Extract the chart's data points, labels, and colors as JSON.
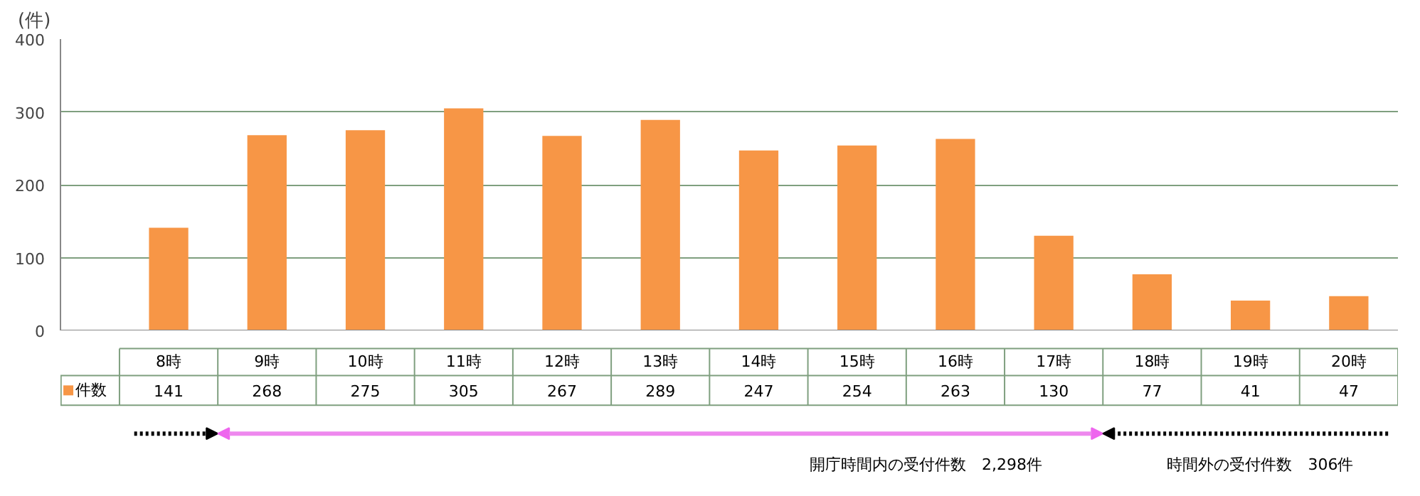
{
  "chart_data": {
    "type": "bar",
    "ylabel": "(件)",
    "categories": [
      "8時",
      "9時",
      "10時",
      "11時",
      "12時",
      "13時",
      "14時",
      "15時",
      "16時",
      "17時",
      "18時",
      "19時",
      "20時"
    ],
    "series": [
      {
        "name": "件数",
        "color": "#f79646",
        "values": [
          141,
          268,
          275,
          305,
          267,
          289,
          247,
          254,
          263,
          130,
          77,
          41,
          47
        ]
      }
    ],
    "ylim": [
      0,
      400
    ],
    "yticks": [
      0,
      100,
      200,
      300,
      400
    ],
    "grid": "y",
    "legend": "bottom left",
    "data_labels": true,
    "annotations": [
      "開庁時間内の受付件数　2,298件",
      "時間外の受付件数　306件"
    ]
  }
}
